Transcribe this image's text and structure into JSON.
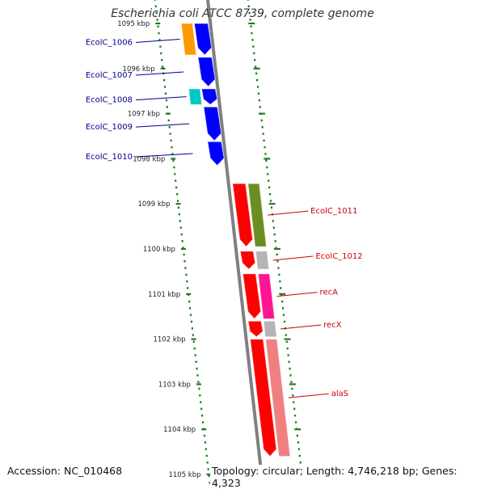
{
  "title": "Escherichia coli ATCC 8739, complete genome",
  "footer": {
    "accession": "Accession: NC_010468",
    "summary": "Topology: circular; Length: 4,746,218 bp; Genes: 4,323"
  },
  "colors": {
    "backbone": "#808080",
    "tick": "#1f7a1f",
    "label_forward": "#00008b",
    "label_reverse": "#cc0000",
    "gene_blue": "#0000ff",
    "gene_red": "#ff0000",
    "gene_cyan": "#00c8c8",
    "gene_orange": "#ff9900",
    "gene_olive": "#6b8e23",
    "gene_gray": "#b4b4b4",
    "gene_magenta": "#ff1493",
    "gene_pink": "#f08080"
  },
  "ruler": {
    "unit": "kbp",
    "ticks": [
      {
        "label": "1095 kbp",
        "value": 1095
      },
      {
        "label": "1096 kbp",
        "value": 1096
      },
      {
        "label": "1097 kbp",
        "value": 1097
      },
      {
        "label": "1098 kbp",
        "value": 1098
      },
      {
        "label": "1099 kbp",
        "value": 1099
      },
      {
        "label": "1100 kbp",
        "value": 1100
      },
      {
        "label": "1101 kbp",
        "value": 1101
      },
      {
        "label": "1102 kbp",
        "value": 1102
      },
      {
        "label": "1103 kbp",
        "value": 1103
      },
      {
        "label": "1104 kbp",
        "value": 1104
      },
      {
        "label": "1105 kbp",
        "value": 1105
      }
    ]
  },
  "features": {
    "forward": [
      {
        "label": "EcolC_1006",
        "start": 1095.0,
        "end": 1095.7,
        "color": "#0000ff",
        "companion": "#ff9900"
      },
      {
        "label": "EcolC_1007",
        "start": 1095.75,
        "end": 1096.4,
        "color": "#0000ff"
      },
      {
        "label": "EcolC_1008",
        "start": 1096.45,
        "end": 1096.8,
        "color": "#0000ff",
        "companion": "#00c8c8"
      },
      {
        "label": "EcolC_1009",
        "start": 1096.85,
        "end": 1097.6,
        "color": "#0000ff"
      },
      {
        "label": "EcolC_1010",
        "start": 1097.62,
        "end": 1098.15,
        "color": "#0000ff"
      }
    ],
    "reverse": [
      {
        "label": "EcolC_1011",
        "start": 1098.55,
        "end": 1099.95,
        "color": "#ff0000",
        "companion": "#6b8e23"
      },
      {
        "label": "EcolC_1012",
        "start": 1100.05,
        "end": 1100.45,
        "color": "#ff0000",
        "companion": "#b4b4b4"
      },
      {
        "label": "recA",
        "start": 1100.55,
        "end": 1101.55,
        "color": "#ff0000",
        "companion": "#ff1493"
      },
      {
        "label": "recX",
        "start": 1101.6,
        "end": 1101.95,
        "color": "#ff0000",
        "companion": "#b4b4b4"
      },
      {
        "label": "alaS",
        "start": 1102.0,
        "end": 1104.6,
        "color": "#ff0000",
        "companion": "#f08080"
      }
    ]
  }
}
